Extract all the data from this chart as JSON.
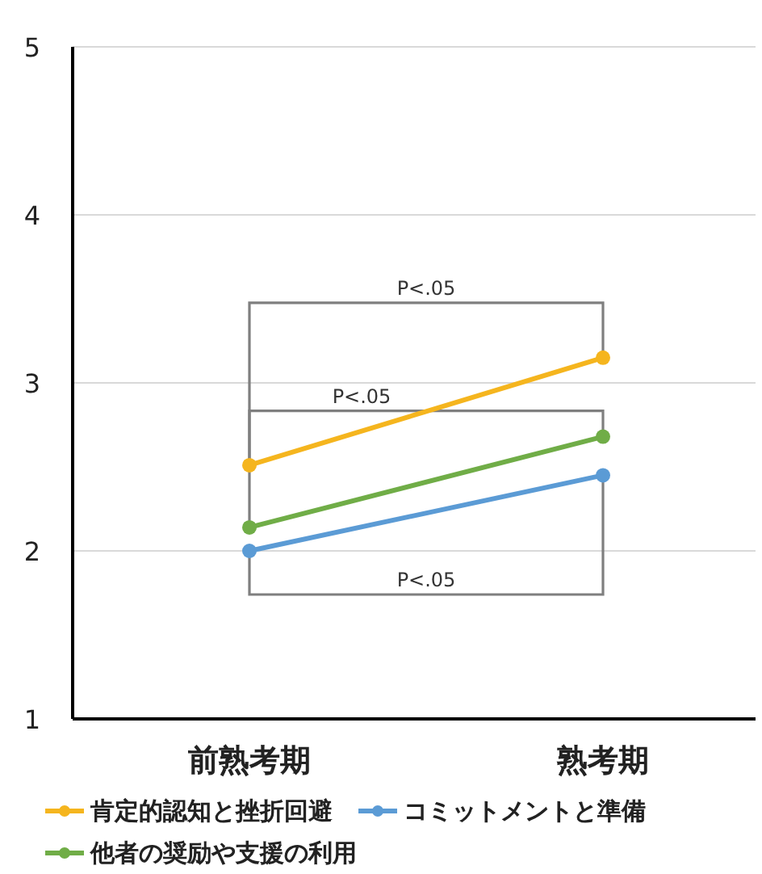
{
  "chart_data": {
    "type": "line",
    "categories": [
      "前熟考期",
      "熟考期"
    ],
    "series": [
      {
        "name": "肯定的認知と挫折回避",
        "color": "#f5b51e",
        "values": [
          2.51,
          3.15
        ]
      },
      {
        "name": "コミットメントと準備",
        "color": "#5b9bd5",
        "values": [
          2.0,
          2.45
        ]
      },
      {
        "name": "他者の奨励や支援の利用",
        "color": "#70ad47",
        "values": [
          2.14,
          2.68
        ]
      }
    ],
    "ylim": [
      1,
      5
    ],
    "yticks": [
      1,
      2,
      3,
      4,
      5
    ],
    "grid": "y",
    "legend": "bottom",
    "marker": "circle",
    "line_style": "solid",
    "annotations": [
      "P<.05",
      "P<.05",
      "P<.05"
    ]
  }
}
